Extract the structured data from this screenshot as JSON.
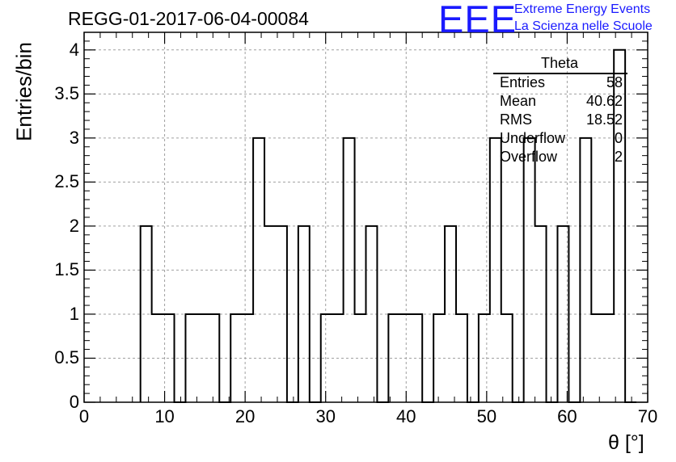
{
  "title": "REGG-01-2017-06-04-00084",
  "logo": {
    "text": "EEE",
    "line1": "Extreme Energy Events",
    "line2": "La Scienza nelle Scuole"
  },
  "stats": {
    "name": "Theta",
    "rows": [
      {
        "key": "Entries",
        "value": "58"
      },
      {
        "key": "Mean",
        "value": "40.62"
      },
      {
        "key": "RMS",
        "value": "18.52"
      },
      {
        "key": "Underflow",
        "value": "0"
      },
      {
        "key": "Overflow",
        "value": "2"
      }
    ]
  },
  "chart_data": {
    "type": "histogram",
    "title": "REGG-01-2017-06-04-00084",
    "xlabel": "θ [°]",
    "ylabel": "Entries/bin",
    "xlim": [
      0,
      70
    ],
    "ylim": [
      0,
      4.2
    ],
    "grid": true,
    "bin_width": 1.4,
    "x_ticks": [
      "0",
      "10",
      "20",
      "30",
      "40",
      "50",
      "60",
      "70"
    ],
    "y_ticks": [
      "0",
      "0.5",
      "1",
      "1.5",
      "2",
      "2.5",
      "3",
      "3.5",
      "4"
    ],
    "bins": [
      {
        "x": 7.0,
        "y": 2
      },
      {
        "x": 8.4,
        "y": 1
      },
      {
        "x": 9.8,
        "y": 1
      },
      {
        "x": 11.2,
        "y": 0
      },
      {
        "x": 12.6,
        "y": 1
      },
      {
        "x": 14.0,
        "y": 1
      },
      {
        "x": 15.4,
        "y": 1
      },
      {
        "x": 16.8,
        "y": 0
      },
      {
        "x": 18.2,
        "y": 1
      },
      {
        "x": 19.6,
        "y": 1
      },
      {
        "x": 21.0,
        "y": 3
      },
      {
        "x": 22.4,
        "y": 2
      },
      {
        "x": 23.8,
        "y": 2
      },
      {
        "x": 25.2,
        "y": 0
      },
      {
        "x": 26.6,
        "y": 2
      },
      {
        "x": 28.0,
        "y": 0
      },
      {
        "x": 29.4,
        "y": 1
      },
      {
        "x": 30.8,
        "y": 1
      },
      {
        "x": 32.2,
        "y": 3
      },
      {
        "x": 33.6,
        "y": 1
      },
      {
        "x": 35.0,
        "y": 2
      },
      {
        "x": 36.4,
        "y": 0
      },
      {
        "x": 37.8,
        "y": 1
      },
      {
        "x": 39.2,
        "y": 1
      },
      {
        "x": 40.6,
        "y": 1
      },
      {
        "x": 42.0,
        "y": 0
      },
      {
        "x": 43.4,
        "y": 1
      },
      {
        "x": 44.8,
        "y": 2
      },
      {
        "x": 46.2,
        "y": 1
      },
      {
        "x": 47.6,
        "y": 0
      },
      {
        "x": 49.0,
        "y": 1
      },
      {
        "x": 50.4,
        "y": 3
      },
      {
        "x": 51.8,
        "y": 1
      },
      {
        "x": 53.2,
        "y": 0
      },
      {
        "x": 54.6,
        "y": 3
      },
      {
        "x": 56.0,
        "y": 2
      },
      {
        "x": 57.4,
        "y": 0
      },
      {
        "x": 58.8,
        "y": 2
      },
      {
        "x": 60.2,
        "y": 0
      },
      {
        "x": 61.6,
        "y": 3
      },
      {
        "x": 63.0,
        "y": 1
      },
      {
        "x": 64.4,
        "y": 1
      },
      {
        "x": 65.8,
        "y": 4
      },
      {
        "x": 67.2,
        "y": 0
      }
    ]
  }
}
